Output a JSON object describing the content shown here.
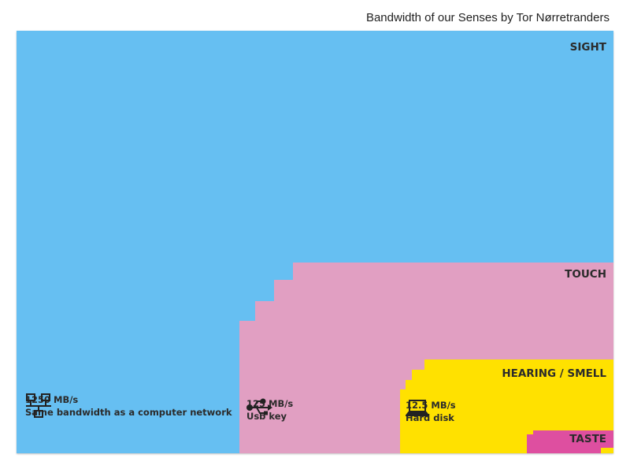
{
  "title": "Bandwidth of our Senses by Tor Nørretranders",
  "chart_data": {
    "type": "area",
    "title": "Bandwidth of our Senses by Tor Nørretranders",
    "xlabel": "",
    "ylabel": "",
    "series": [
      {
        "name": "SIGHT",
        "color": "#66bff2"
      },
      {
        "name": "TOUCH",
        "color": "#e19fc2"
      },
      {
        "name": "HEARING / SMELL",
        "color": "#ffe100"
      },
      {
        "name": "TASTE",
        "color": "#de4fa0"
      }
    ],
    "annotations": [
      {
        "value": "1250 MB/s",
        "description": "Same bandwidth as a computer network",
        "icon": "network-icon"
      },
      {
        "value": "125 MB/s",
        "description": "Usb key",
        "icon": "usb-icon"
      },
      {
        "value": "12.5 MB/s",
        "description": "Hard disk",
        "icon": "laptop-icon"
      }
    ]
  }
}
